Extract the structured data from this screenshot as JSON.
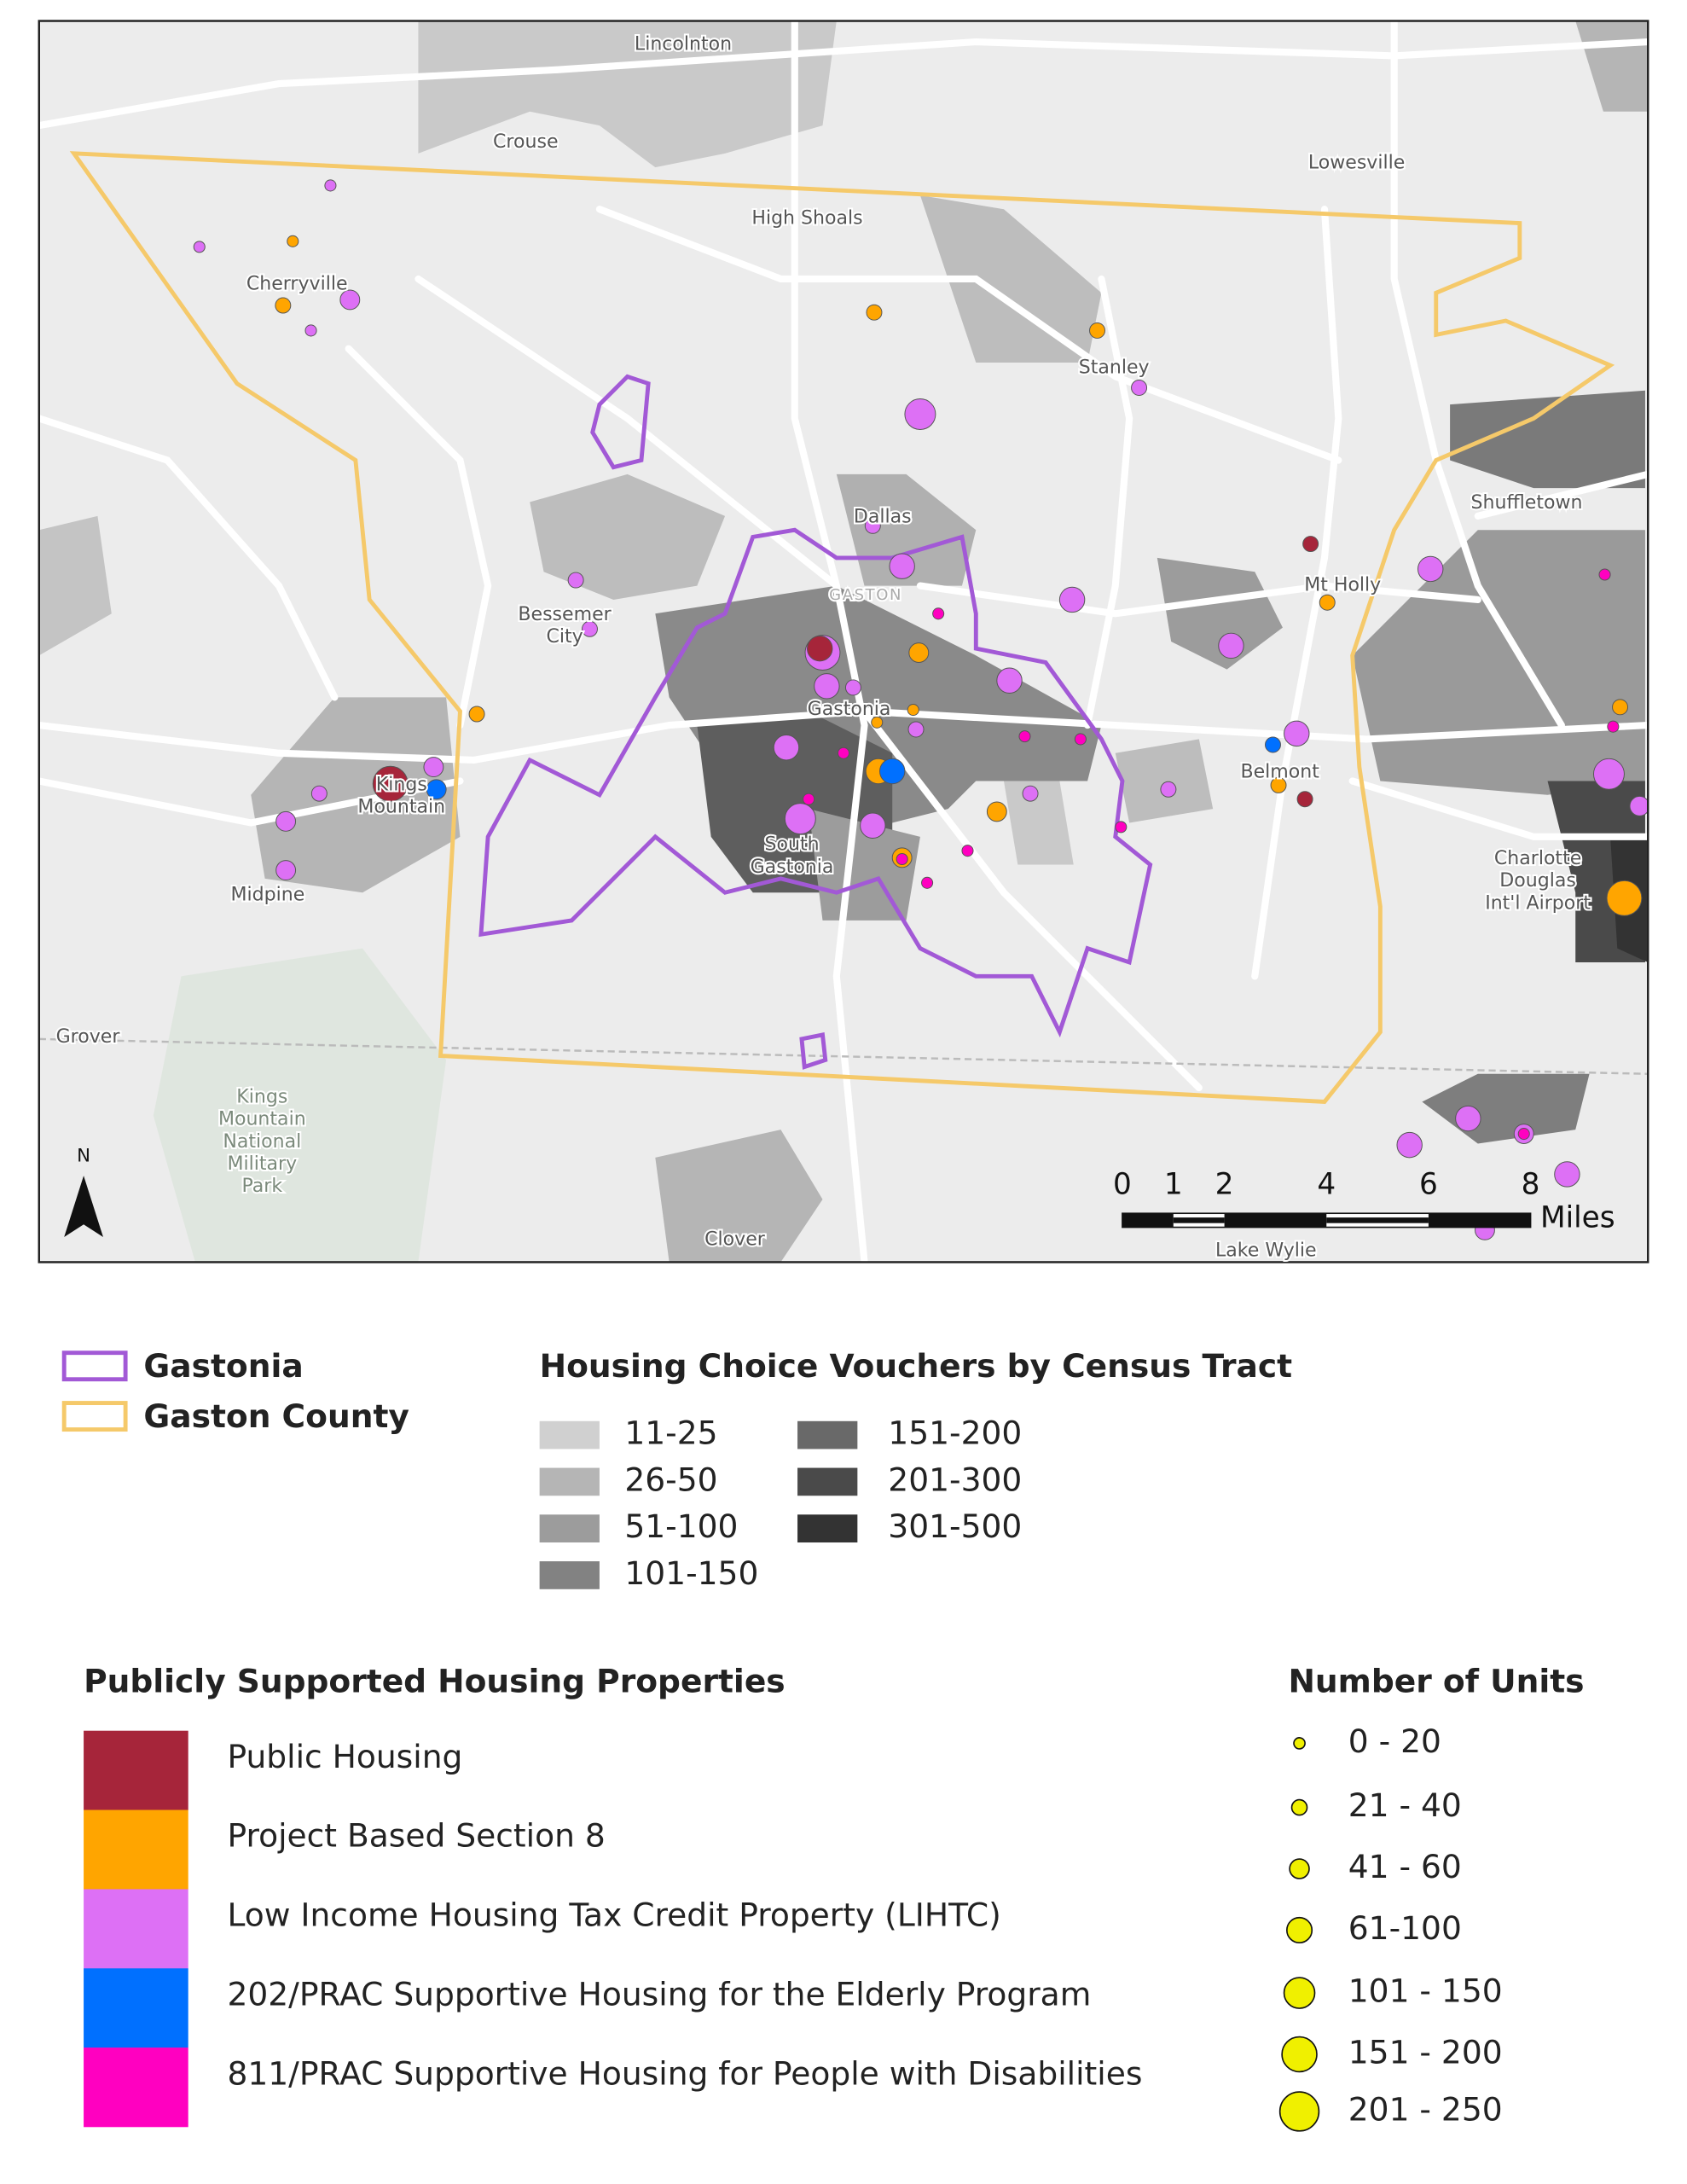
{
  "map": {
    "place_labels": [
      [
        "Lincolnton"
      ],
      [
        "Crouse"
      ],
      [
        "Lowesville"
      ],
      [
        "High Shoals"
      ],
      [
        "Cherryville"
      ],
      [
        "Stanley"
      ],
      [
        "Shuffletown"
      ],
      [
        "Dallas"
      ],
      [
        "Mt Holly"
      ],
      [
        "GASTON"
      ],
      [
        "Bessemer",
        "City"
      ],
      [
        "Gastonia"
      ],
      [
        "Belmont"
      ],
      [
        "Kings",
        "Mountain"
      ],
      [
        "Midpine"
      ],
      [
        "South",
        "Gastonia"
      ],
      [
        "Charlotte",
        "Douglas",
        "Int'l Airport"
      ],
      [
        "Grover"
      ],
      [
        "Kings",
        "Mountain",
        "National",
        "Military",
        "Park"
      ],
      [
        "Clover"
      ],
      [
        "Lake Wylie"
      ]
    ],
    "north": "N",
    "scale_ticks": [
      0,
      1,
      2,
      4,
      6,
      8
    ],
    "scale_unit": "Miles"
  },
  "boundaries": [
    "Gastonia",
    "Gaston County"
  ],
  "vouchers": {
    "title": "Housing Choice Vouchers by Census Tract",
    "classes": [
      "11-25",
      "26-50",
      "51-100",
      "101-150",
      "151-200",
      "201-300",
      "301-500"
    ]
  },
  "properties": {
    "title": "Publicly Supported Housing Properties",
    "types": [
      "Public Housing",
      "Project Based Section 8",
      "Low Income Housing Tax Credit Property (LIHTC)",
      "202/PRAC Supportive Housing for the Elderly Program",
      "811/PRAC Supportive Housing for People with Disabilities"
    ]
  },
  "units": {
    "title": "Number of Units",
    "classes": [
      "0 - 20",
      "21 - 40",
      "41 - 60",
      "61-100",
      "101 - 150",
      "151 - 200",
      "201 - 250"
    ]
  }
}
